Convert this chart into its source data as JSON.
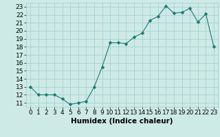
{
  "x": [
    0,
    1,
    2,
    3,
    4,
    5,
    6,
    7,
    8,
    9,
    10,
    11,
    12,
    13,
    14,
    15,
    16,
    17,
    18,
    19,
    20,
    21,
    22,
    23
  ],
  "y": [
    13,
    12,
    12,
    12,
    11.5,
    10.8,
    11,
    11.2,
    13,
    15.5,
    18.5,
    18.5,
    18.4,
    19.2,
    19.7,
    21.3,
    21.8,
    23.1,
    22.2,
    22.3,
    22.8,
    21.1,
    22.1,
    18
  ],
  "line_color": "#1a7a6e",
  "marker": "D",
  "marker_size": 2.5,
  "bg_color": "#cdeae7",
  "grid_color": "#a0ccc8",
  "xlabel": "Humidex (Indice chaleur)",
  "xlim": [
    -0.5,
    23.5
  ],
  "ylim": [
    10.5,
    23.5
  ],
  "yticks": [
    11,
    12,
    13,
    14,
    15,
    16,
    17,
    18,
    19,
    20,
    21,
    22,
    23
  ],
  "xticks": [
    0,
    1,
    2,
    3,
    4,
    5,
    6,
    7,
    8,
    9,
    10,
    11,
    12,
    13,
    14,
    15,
    16,
    17,
    18,
    19,
    20,
    21,
    22,
    23
  ],
  "xlabel_fontsize": 7.5,
  "tick_fontsize": 6.5
}
